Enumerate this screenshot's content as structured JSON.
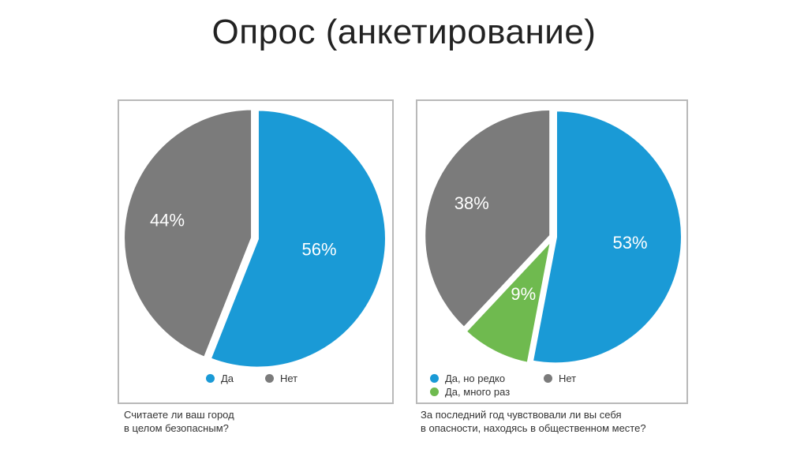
{
  "page": {
    "title": "Опрос (анкетирование)"
  },
  "colors": {
    "blue": "#1a9ad6",
    "gray": "#7b7b7b",
    "green": "#6fba4f",
    "label": "#ffffff"
  },
  "chart_data": [
    {
      "type": "pie",
      "question_line1": "Считаете ли ваш город",
      "question_line2": "в целом безопасным?",
      "slices": [
        {
          "label": "Да",
          "value": 56,
          "display": "56%",
          "color": "#1a9ad6"
        },
        {
          "label": "Нет",
          "value": 44,
          "display": "44%",
          "color": "#7b7b7b"
        }
      ],
      "legend": [
        {
          "label": "Да",
          "color": "#1a9ad6"
        },
        {
          "label": "Нет",
          "color": "#7b7b7b"
        }
      ]
    },
    {
      "type": "pie",
      "question_line1": "За последний год чувствовали ли вы себя",
      "question_line2": "в опасности, находясь в общественном месте?",
      "slices": [
        {
          "label": "Да, но редко",
          "value": 53,
          "display": "53%",
          "color": "#1a9ad6"
        },
        {
          "label": "Да, много раз",
          "value": 9,
          "display": "9%",
          "color": "#6fba4f"
        },
        {
          "label": "Нет",
          "value": 38,
          "display": "38%",
          "color": "#7b7b7b"
        }
      ],
      "legend": [
        {
          "label": "Да, но редко",
          "color": "#1a9ad6"
        },
        {
          "label": "Нет",
          "color": "#7b7b7b"
        },
        {
          "label": "Да, много раз",
          "color": "#6fba4f"
        }
      ]
    }
  ]
}
